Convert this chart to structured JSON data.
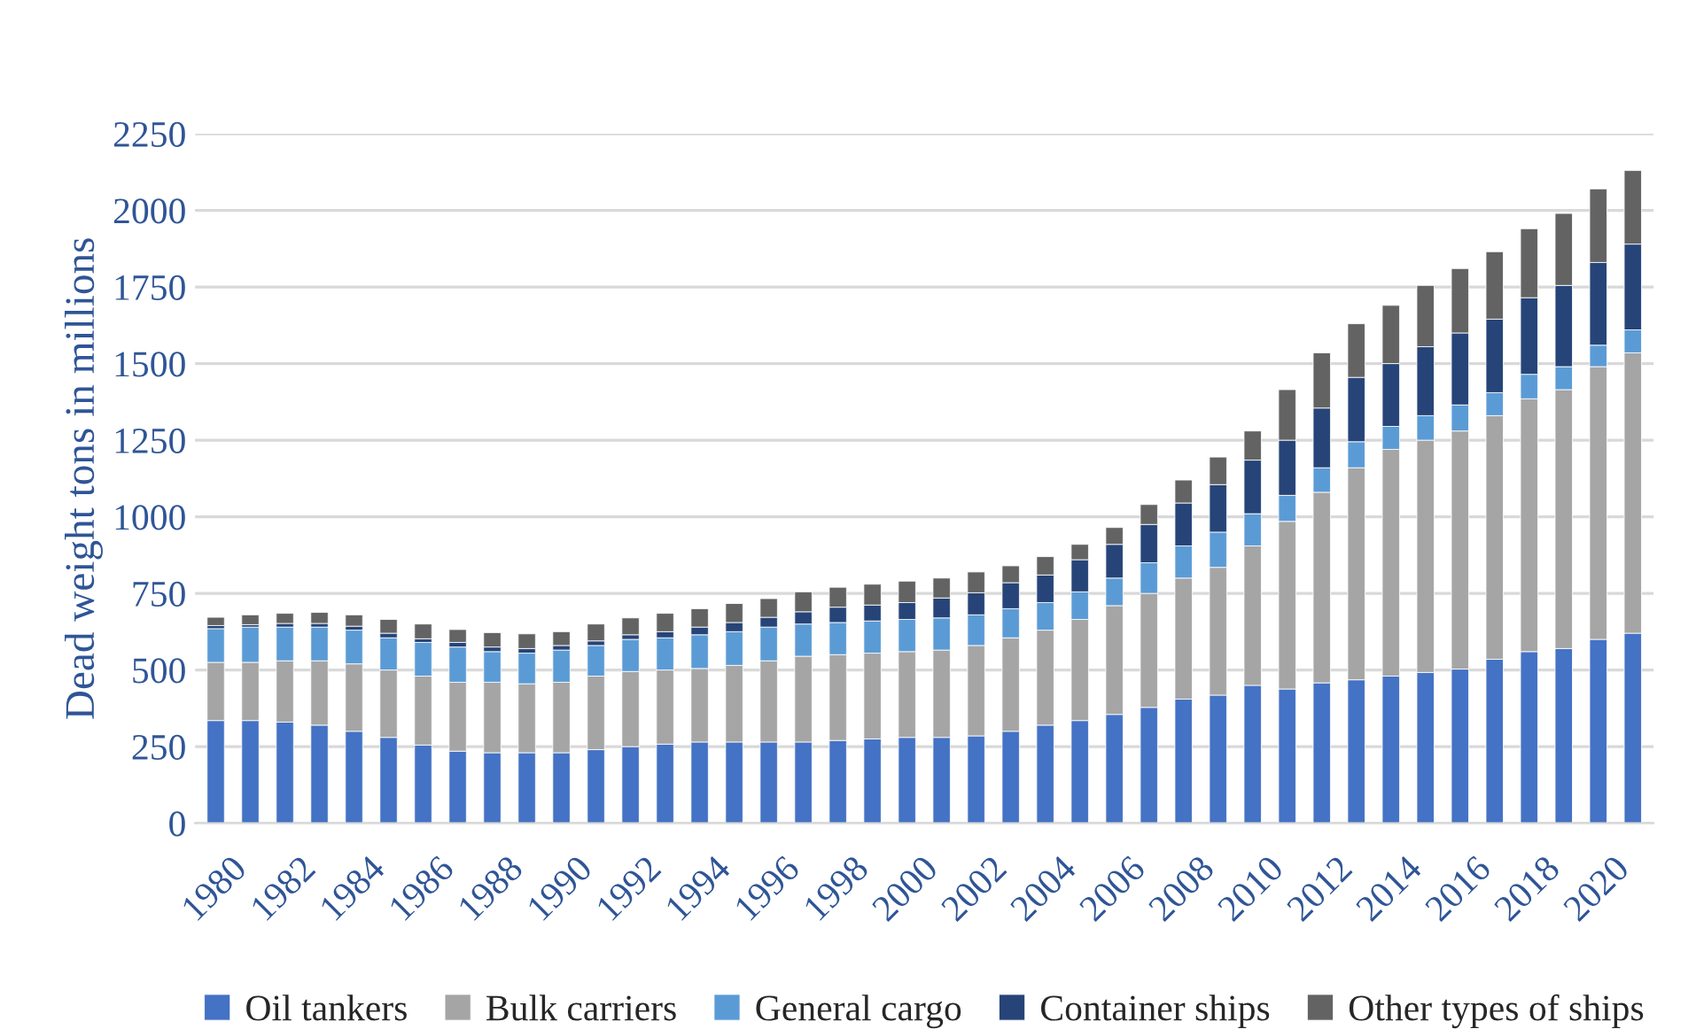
{
  "chart_data": {
    "type": "bar",
    "stacked": true,
    "ylabel": "Dead weight tons in millions",
    "categories": [
      "1980",
      null,
      "1982",
      null,
      "1984",
      null,
      "1986",
      null,
      "1988",
      null,
      "1990",
      null,
      "1992",
      null,
      "1994",
      null,
      "1996",
      null,
      "1998",
      null,
      "2000",
      null,
      "2002",
      null,
      "2004",
      null,
      "2006",
      null,
      "2008",
      null,
      "2010",
      null,
      "2012",
      null,
      "2014",
      null,
      "2016",
      null,
      "2018",
      null,
      "2020",
      null
    ],
    "series": [
      {
        "name": "Oil tankers",
        "color": "#4472c4",
        "values": [
          335,
          335,
          330,
          320,
          300,
          280,
          255,
          235,
          230,
          230,
          230,
          240,
          250,
          258,
          265,
          265,
          265,
          265,
          270,
          275,
          280,
          280,
          285,
          300,
          320,
          335,
          355,
          378,
          405,
          418,
          450,
          438,
          458,
          468,
          480,
          492,
          503,
          535,
          560,
          570,
          600,
          620
        ]
      },
      {
        "name": "Bulk carriers",
        "color": "#a5a5a5",
        "values": [
          190,
          190,
          200,
          210,
          220,
          220,
          225,
          225,
          230,
          225,
          230,
          240,
          245,
          242,
          240,
          250,
          265,
          280,
          280,
          280,
          280,
          285,
          295,
          305,
          310,
          330,
          355,
          372,
          395,
          417,
          455,
          547,
          622,
          692,
          740,
          758,
          777,
          795,
          825,
          845,
          890,
          915
        ]
      },
      {
        "name": "General cargo",
        "color": "#5b9bd5",
        "values": [
          110,
          115,
          110,
          110,
          110,
          105,
          110,
          115,
          100,
          100,
          105,
          100,
          105,
          105,
          110,
          110,
          110,
          105,
          105,
          105,
          105,
          105,
          100,
          95,
          90,
          90,
          90,
          100,
          105,
          115,
          105,
          85,
          80,
          85,
          75,
          80,
          85,
          75,
          80,
          75,
          70,
          75
        ]
      },
      {
        "name": "Container ships",
        "color": "#264478",
        "values": [
          10,
          8,
          12,
          12,
          13,
          15,
          12,
          15,
          15,
          15,
          15,
          15,
          15,
          20,
          25,
          30,
          32,
          40,
          50,
          52,
          55,
          65,
          72,
          85,
          90,
          105,
          110,
          125,
          140,
          155,
          175,
          180,
          195,
          210,
          205,
          225,
          235,
          240,
          250,
          265,
          270,
          280
        ]
      },
      {
        "name": "Other types of ships",
        "color": "#636363",
        "values": [
          27,
          32,
          33,
          36,
          37,
          45,
          48,
          42,
          47,
          48,
          45,
          55,
          55,
          60,
          60,
          62,
          61,
          65,
          65,
          68,
          70,
          65,
          68,
          55,
          60,
          50,
          55,
          65,
          75,
          90,
          95,
          165,
          180,
          175,
          190,
          200,
          210,
          220,
          225,
          235,
          240,
          240
        ]
      }
    ],
    "ylim": [
      0,
      2250
    ],
    "yticks": [
      0,
      250,
      500,
      750,
      1000,
      1250,
      1500,
      1750,
      2000,
      2250
    ],
    "grid": "y",
    "legend": "bottom"
  }
}
